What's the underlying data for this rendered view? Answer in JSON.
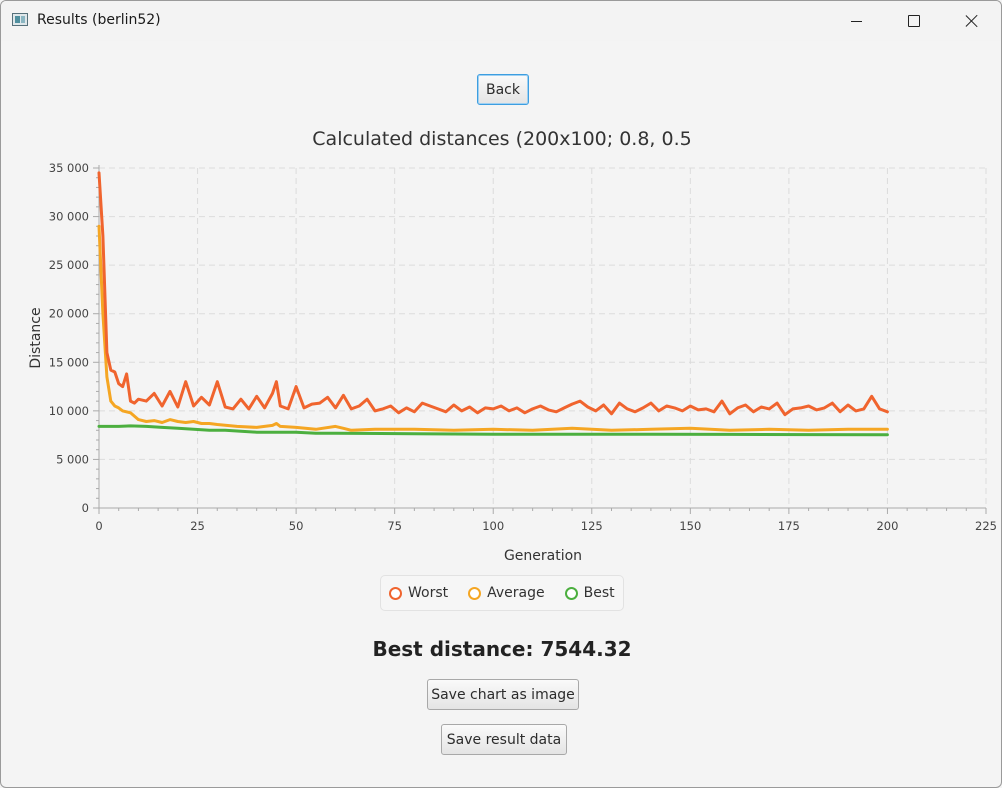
{
  "window": {
    "title": "Results (berlin52)"
  },
  "buttons": {
    "back": "Back",
    "save_chart": "Save chart as image",
    "save_data": "Save result data"
  },
  "result": {
    "best_distance": "Best distance: 7544.32"
  },
  "chart_data": {
    "type": "line",
    "title": "Calculated distances (200x100; 0.8, 0.5",
    "xlabel": "Generation",
    "ylabel": "Distance",
    "xlim": [
      0,
      225
    ],
    "ylim": [
      0,
      35000
    ],
    "x_ticks": [
      0,
      25,
      50,
      75,
      100,
      125,
      150,
      175,
      200,
      225
    ],
    "y_ticks": [
      0,
      5000,
      10000,
      15000,
      20000,
      25000,
      30000,
      35000
    ],
    "x_tick_labels": [
      "0",
      "25",
      "50",
      "75",
      "100",
      "125",
      "150",
      "175",
      "200",
      "225"
    ],
    "y_tick_labels": [
      "0",
      "5 000",
      "10 000",
      "15 000",
      "20 000",
      "25 000",
      "30 000",
      "35 000"
    ],
    "grid": true,
    "legend_position": "bottom",
    "series": [
      {
        "name": "Worst",
        "color": "#f0642e",
        "x": [
          0,
          1,
          2,
          3,
          4,
          5,
          6,
          7,
          8,
          9,
          10,
          12,
          14,
          16,
          18,
          20,
          22,
          24,
          26,
          28,
          30,
          32,
          34,
          36,
          38,
          40,
          42,
          44,
          45,
          46,
          48,
          50,
          52,
          54,
          56,
          58,
          60,
          62,
          64,
          66,
          68,
          70,
          72,
          74,
          76,
          78,
          80,
          82,
          84,
          86,
          88,
          90,
          92,
          94,
          96,
          98,
          100,
          102,
          104,
          106,
          108,
          110,
          112,
          114,
          116,
          118,
          120,
          122,
          124,
          126,
          128,
          130,
          132,
          134,
          136,
          138,
          140,
          142,
          144,
          146,
          148,
          150,
          152,
          154,
          156,
          158,
          160,
          162,
          164,
          166,
          168,
          170,
          172,
          174,
          176,
          178,
          180,
          182,
          184,
          186,
          188,
          190,
          192,
          194,
          196,
          198,
          200
        ],
        "y": [
          34500,
          28000,
          16000,
          14200,
          14000,
          12800,
          12500,
          13800,
          11000,
          10800,
          11200,
          11000,
          11800,
          10500,
          12000,
          10400,
          13000,
          10500,
          11400,
          10600,
          13000,
          10400,
          10200,
          11200,
          10200,
          11500,
          10300,
          11800,
          13000,
          10500,
          10200,
          12500,
          10300,
          10700,
          10800,
          11400,
          10300,
          11600,
          10200,
          10500,
          11200,
          10000,
          10200,
          10500,
          9800,
          10300,
          9900,
          10800,
          10500,
          10200,
          9900,
          10600,
          10000,
          10400,
          9800,
          10300,
          10200,
          10500,
          10000,
          10300,
          9800,
          10200,
          10500,
          10100,
          9900,
          10300,
          10700,
          11000,
          10400,
          10000,
          10600,
          9700,
          10800,
          10200,
          9900,
          10300,
          10800,
          10000,
          10500,
          10300,
          10000,
          10500,
          10100,
          10200,
          9900,
          11000,
          9700,
          10300,
          10600,
          9900,
          10400,
          10200,
          10800,
          9600,
          10200,
          10300,
          10500,
          10100,
          10300,
          10800,
          9900,
          10600,
          10000,
          10200,
          11500,
          10200,
          9900
        ]
      },
      {
        "name": "Average",
        "color": "#f5a623",
        "x": [
          0,
          1,
          2,
          3,
          4,
          5,
          6,
          8,
          10,
          12,
          14,
          16,
          18,
          20,
          22,
          24,
          26,
          28,
          30,
          35,
          40,
          44,
          45,
          46,
          50,
          55,
          60,
          62,
          64,
          70,
          80,
          90,
          100,
          110,
          120,
          130,
          140,
          150,
          160,
          170,
          180,
          190,
          200
        ],
        "y": [
          29000,
          20000,
          13500,
          11000,
          10500,
          10300,
          10000,
          9800,
          9100,
          8900,
          9000,
          8800,
          9100,
          8900,
          8800,
          8900,
          8700,
          8700,
          8600,
          8400,
          8300,
          8500,
          8700,
          8400,
          8300,
          8100,
          8400,
          8200,
          8000,
          8100,
          8100,
          8000,
          8100,
          8000,
          8200,
          8000,
          8100,
          8200,
          8000,
          8100,
          8000,
          8100,
          8100
        ]
      },
      {
        "name": "Best",
        "color": "#4caf3f",
        "x": [
          0,
          5,
          8,
          12,
          16,
          20,
          24,
          28,
          32,
          36,
          40,
          45,
          50,
          55,
          60,
          80,
          100,
          120,
          140,
          160,
          180,
          200
        ],
        "y": [
          8400,
          8400,
          8450,
          8400,
          8300,
          8200,
          8100,
          8000,
          8000,
          7900,
          7800,
          7800,
          7800,
          7700,
          7700,
          7650,
          7600,
          7600,
          7600,
          7580,
          7560,
          7550
        ]
      }
    ]
  }
}
